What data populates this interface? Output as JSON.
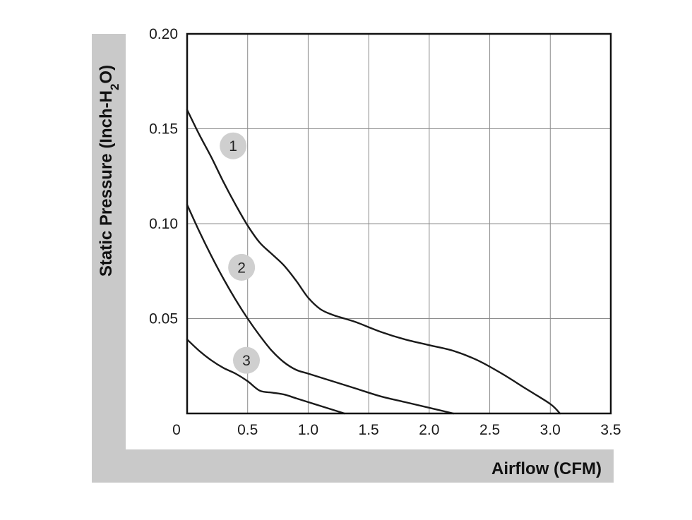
{
  "chart_data": {
    "type": "line",
    "xlabel": "Airflow (CFM)",
    "ylabel": "Static Pressure (Inch-H2O)",
    "ylabel_parts": [
      "Static Pressure (Inch-H",
      "2",
      "O)"
    ],
    "xlim": [
      0,
      3.5
    ],
    "ylim": [
      0,
      0.2
    ],
    "x_ticks": [
      0,
      0.5,
      1.0,
      1.5,
      2.0,
      2.5,
      3.0,
      3.5
    ],
    "x_tick_labels": [
      "0",
      "0.5",
      "1.0",
      "1.5",
      "2.0",
      "2.5",
      "3.0",
      "3.5"
    ],
    "y_ticks": [
      0.05,
      0.1,
      0.15,
      0.2
    ],
    "y_tick_labels": [
      "0.05",
      "0.10",
      "0.15",
      "0.20"
    ],
    "grid": true,
    "colors": {
      "line": "#1a1a1a",
      "band": "#c9c9c9",
      "grid": "#8c8c8c",
      "badge": "#cfcfcf"
    },
    "series": [
      {
        "label": "1",
        "x": [
          0,
          0.1,
          0.2,
          0.3,
          0.4,
          0.5,
          0.6,
          0.7,
          0.8,
          0.9,
          1.0,
          1.1,
          1.2,
          1.3,
          1.4,
          1.6,
          1.8,
          2.0,
          2.2,
          2.4,
          2.6,
          2.8,
          3.0,
          3.08
        ],
        "y": [
          0.16,
          0.147,
          0.135,
          0.122,
          0.11,
          0.099,
          0.09,
          0.084,
          0.078,
          0.07,
          0.061,
          0.055,
          0.052,
          0.05,
          0.048,
          0.043,
          0.039,
          0.036,
          0.033,
          0.028,
          0.021,
          0.013,
          0.005,
          0.0
        ],
        "badge_at": [
          0.38,
          0.141
        ]
      },
      {
        "label": "2",
        "x": [
          0,
          0.1,
          0.2,
          0.3,
          0.4,
          0.5,
          0.6,
          0.7,
          0.8,
          0.9,
          1.0,
          1.2,
          1.4,
          1.6,
          1.8,
          2.0,
          2.2
        ],
        "y": [
          0.11,
          0.096,
          0.083,
          0.071,
          0.06,
          0.05,
          0.041,
          0.033,
          0.027,
          0.023,
          0.021,
          0.017,
          0.013,
          0.009,
          0.006,
          0.003,
          0.0
        ],
        "badge_at": [
          0.45,
          0.077
        ]
      },
      {
        "label": "3",
        "x": [
          0,
          0.1,
          0.2,
          0.3,
          0.4,
          0.5,
          0.6,
          0.7,
          0.8,
          0.9,
          1.0,
          1.1,
          1.2,
          1.3
        ],
        "y": [
          0.039,
          0.033,
          0.028,
          0.024,
          0.021,
          0.017,
          0.012,
          0.011,
          0.01,
          0.008,
          0.006,
          0.004,
          0.002,
          0.0
        ],
        "badge_at": [
          0.49,
          0.028
        ]
      }
    ]
  }
}
